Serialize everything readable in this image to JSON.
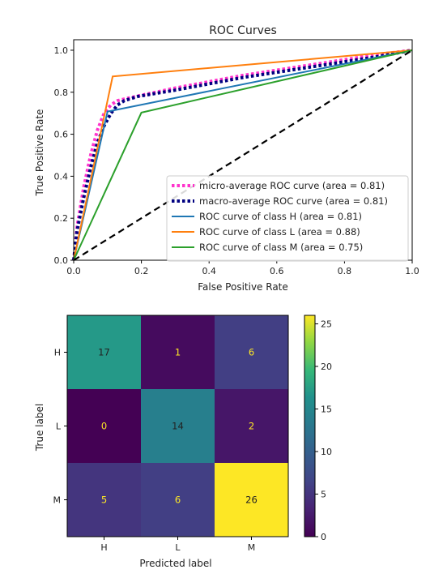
{
  "chart_data": [
    {
      "type": "line",
      "title": "ROC Curves",
      "xlabel": "False Positive Rate",
      "ylabel": "True Positive Rate",
      "xlim": [
        0.0,
        1.0
      ],
      "ylim": [
        0.0,
        1.05
      ],
      "xticks": [
        "0.0",
        "0.2",
        "0.4",
        "0.6",
        "0.8",
        "1.0"
      ],
      "yticks": [
        "0.0",
        "0.2",
        "0.4",
        "0.6",
        "0.8",
        "1.0"
      ],
      "grid": false,
      "legend_position": "lower right",
      "series": [
        {
          "name": "micro-average ROC curve (area = 0.81)",
          "color": "#ff33cc",
          "style": "dotted",
          "x": [
            0.0,
            0.01,
            0.03,
            0.05,
            0.07,
            0.09,
            0.11,
            0.13,
            0.17,
            0.3,
            0.5,
            0.7,
            0.9,
            1.0
          ],
          "y": [
            0.0,
            0.16,
            0.35,
            0.5,
            0.62,
            0.7,
            0.74,
            0.76,
            0.775,
            0.82,
            0.88,
            0.93,
            0.98,
            1.0
          ]
        },
        {
          "name": "macro-average ROC curve (area = 0.81)",
          "color": "#000080",
          "style": "dotted",
          "x": [
            0.0,
            0.01,
            0.03,
            0.05,
            0.07,
            0.09,
            0.11,
            0.13,
            0.15,
            0.19,
            0.3,
            0.5,
            0.7,
            0.9,
            1.0
          ],
          "y": [
            0.0,
            0.14,
            0.3,
            0.44,
            0.56,
            0.64,
            0.7,
            0.74,
            0.76,
            0.78,
            0.81,
            0.87,
            0.92,
            0.97,
            1.0
          ]
        },
        {
          "name": "ROC curve of class H (area = 0.81)",
          "color": "#1f77b4",
          "style": "solid",
          "x": [
            0.0,
            0.1,
            1.0
          ],
          "y": [
            0.0,
            0.708,
            1.0
          ]
        },
        {
          "name": "ROC curve of class L (area = 0.88)",
          "color": "#ff7f0e",
          "style": "solid",
          "x": [
            0.0,
            0.115,
            1.0
          ],
          "y": [
            0.0,
            0.875,
            1.0
          ]
        },
        {
          "name": "ROC curve of class M (area = 0.75)",
          "color": "#2ca02c",
          "style": "solid",
          "x": [
            0.0,
            0.2,
            1.0
          ],
          "y": [
            0.0,
            0.703,
            1.0
          ]
        },
        {
          "color": "#000000",
          "style": "dashed",
          "x": [
            0.0,
            1.0
          ],
          "y": [
            0.0,
            1.0
          ]
        }
      ]
    },
    {
      "type": "heatmap",
      "xlabel": "Predicted label",
      "ylabel": "True label",
      "x_categories": [
        "H",
        "L",
        "M"
      ],
      "y_categories": [
        "H",
        "L",
        "M"
      ],
      "values": [
        [
          17,
          1,
          6
        ],
        [
          0,
          14,
          2
        ],
        [
          5,
          6,
          26
        ]
      ],
      "colormap": "viridis",
      "colorbar_range": [
        0,
        26
      ],
      "colorbar_ticks": [
        "0",
        "5",
        "10",
        "15",
        "20",
        "25"
      ]
    }
  ]
}
